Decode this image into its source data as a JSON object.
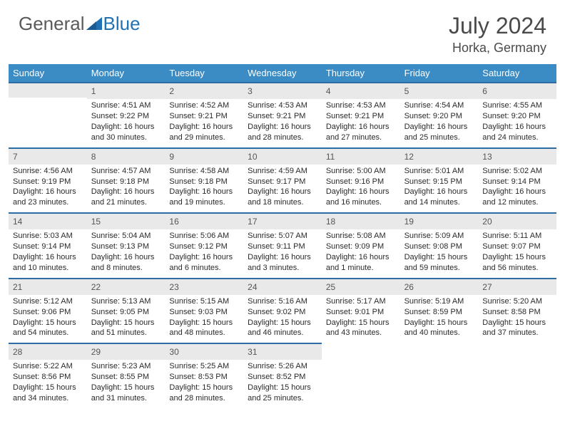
{
  "brand": {
    "part1": "General",
    "part2": "Blue"
  },
  "title": {
    "month_year": "July 2024",
    "location": "Horka, Germany"
  },
  "colors": {
    "header_bg": "#3b8bc4",
    "header_text": "#ffffff",
    "daynum_bg": "#e9e9e9",
    "daynum_border": "#2e6da4",
    "body_text": "#2a2a2a",
    "title_text": "#4a4a4a"
  },
  "day_names": [
    "Sunday",
    "Monday",
    "Tuesday",
    "Wednesday",
    "Thursday",
    "Friday",
    "Saturday"
  ],
  "weeks": [
    [
      null,
      {
        "n": "1",
        "sr": "Sunrise: 4:51 AM",
        "ss": "Sunset: 9:22 PM",
        "d1": "Daylight: 16 hours",
        "d2": "and 30 minutes."
      },
      {
        "n": "2",
        "sr": "Sunrise: 4:52 AM",
        "ss": "Sunset: 9:21 PM",
        "d1": "Daylight: 16 hours",
        "d2": "and 29 minutes."
      },
      {
        "n": "3",
        "sr": "Sunrise: 4:53 AM",
        "ss": "Sunset: 9:21 PM",
        "d1": "Daylight: 16 hours",
        "d2": "and 28 minutes."
      },
      {
        "n": "4",
        "sr": "Sunrise: 4:53 AM",
        "ss": "Sunset: 9:21 PM",
        "d1": "Daylight: 16 hours",
        "d2": "and 27 minutes."
      },
      {
        "n": "5",
        "sr": "Sunrise: 4:54 AM",
        "ss": "Sunset: 9:20 PM",
        "d1": "Daylight: 16 hours",
        "d2": "and 25 minutes."
      },
      {
        "n": "6",
        "sr": "Sunrise: 4:55 AM",
        "ss": "Sunset: 9:20 PM",
        "d1": "Daylight: 16 hours",
        "d2": "and 24 minutes."
      }
    ],
    [
      {
        "n": "7",
        "sr": "Sunrise: 4:56 AM",
        "ss": "Sunset: 9:19 PM",
        "d1": "Daylight: 16 hours",
        "d2": "and 23 minutes."
      },
      {
        "n": "8",
        "sr": "Sunrise: 4:57 AM",
        "ss": "Sunset: 9:18 PM",
        "d1": "Daylight: 16 hours",
        "d2": "and 21 minutes."
      },
      {
        "n": "9",
        "sr": "Sunrise: 4:58 AM",
        "ss": "Sunset: 9:18 PM",
        "d1": "Daylight: 16 hours",
        "d2": "and 19 minutes."
      },
      {
        "n": "10",
        "sr": "Sunrise: 4:59 AM",
        "ss": "Sunset: 9:17 PM",
        "d1": "Daylight: 16 hours",
        "d2": "and 18 minutes."
      },
      {
        "n": "11",
        "sr": "Sunrise: 5:00 AM",
        "ss": "Sunset: 9:16 PM",
        "d1": "Daylight: 16 hours",
        "d2": "and 16 minutes."
      },
      {
        "n": "12",
        "sr": "Sunrise: 5:01 AM",
        "ss": "Sunset: 9:15 PM",
        "d1": "Daylight: 16 hours",
        "d2": "and 14 minutes."
      },
      {
        "n": "13",
        "sr": "Sunrise: 5:02 AM",
        "ss": "Sunset: 9:14 PM",
        "d1": "Daylight: 16 hours",
        "d2": "and 12 minutes."
      }
    ],
    [
      {
        "n": "14",
        "sr": "Sunrise: 5:03 AM",
        "ss": "Sunset: 9:14 PM",
        "d1": "Daylight: 16 hours",
        "d2": "and 10 minutes."
      },
      {
        "n": "15",
        "sr": "Sunrise: 5:04 AM",
        "ss": "Sunset: 9:13 PM",
        "d1": "Daylight: 16 hours",
        "d2": "and 8 minutes."
      },
      {
        "n": "16",
        "sr": "Sunrise: 5:06 AM",
        "ss": "Sunset: 9:12 PM",
        "d1": "Daylight: 16 hours",
        "d2": "and 6 minutes."
      },
      {
        "n": "17",
        "sr": "Sunrise: 5:07 AM",
        "ss": "Sunset: 9:11 PM",
        "d1": "Daylight: 16 hours",
        "d2": "and 3 minutes."
      },
      {
        "n": "18",
        "sr": "Sunrise: 5:08 AM",
        "ss": "Sunset: 9:09 PM",
        "d1": "Daylight: 16 hours",
        "d2": "and 1 minute."
      },
      {
        "n": "19",
        "sr": "Sunrise: 5:09 AM",
        "ss": "Sunset: 9:08 PM",
        "d1": "Daylight: 15 hours",
        "d2": "and 59 minutes."
      },
      {
        "n": "20",
        "sr": "Sunrise: 5:11 AM",
        "ss": "Sunset: 9:07 PM",
        "d1": "Daylight: 15 hours",
        "d2": "and 56 minutes."
      }
    ],
    [
      {
        "n": "21",
        "sr": "Sunrise: 5:12 AM",
        "ss": "Sunset: 9:06 PM",
        "d1": "Daylight: 15 hours",
        "d2": "and 54 minutes."
      },
      {
        "n": "22",
        "sr": "Sunrise: 5:13 AM",
        "ss": "Sunset: 9:05 PM",
        "d1": "Daylight: 15 hours",
        "d2": "and 51 minutes."
      },
      {
        "n": "23",
        "sr": "Sunrise: 5:15 AM",
        "ss": "Sunset: 9:03 PM",
        "d1": "Daylight: 15 hours",
        "d2": "and 48 minutes."
      },
      {
        "n": "24",
        "sr": "Sunrise: 5:16 AM",
        "ss": "Sunset: 9:02 PM",
        "d1": "Daylight: 15 hours",
        "d2": "and 46 minutes."
      },
      {
        "n": "25",
        "sr": "Sunrise: 5:17 AM",
        "ss": "Sunset: 9:01 PM",
        "d1": "Daylight: 15 hours",
        "d2": "and 43 minutes."
      },
      {
        "n": "26",
        "sr": "Sunrise: 5:19 AM",
        "ss": "Sunset: 8:59 PM",
        "d1": "Daylight: 15 hours",
        "d2": "and 40 minutes."
      },
      {
        "n": "27",
        "sr": "Sunrise: 5:20 AM",
        "ss": "Sunset: 8:58 PM",
        "d1": "Daylight: 15 hours",
        "d2": "and 37 minutes."
      }
    ],
    [
      {
        "n": "28",
        "sr": "Sunrise: 5:22 AM",
        "ss": "Sunset: 8:56 PM",
        "d1": "Daylight: 15 hours",
        "d2": "and 34 minutes."
      },
      {
        "n": "29",
        "sr": "Sunrise: 5:23 AM",
        "ss": "Sunset: 8:55 PM",
        "d1": "Daylight: 15 hours",
        "d2": "and 31 minutes."
      },
      {
        "n": "30",
        "sr": "Sunrise: 5:25 AM",
        "ss": "Sunset: 8:53 PM",
        "d1": "Daylight: 15 hours",
        "d2": "and 28 minutes."
      },
      {
        "n": "31",
        "sr": "Sunrise: 5:26 AM",
        "ss": "Sunset: 8:52 PM",
        "d1": "Daylight: 15 hours",
        "d2": "and 25 minutes."
      },
      null,
      null,
      null
    ]
  ]
}
